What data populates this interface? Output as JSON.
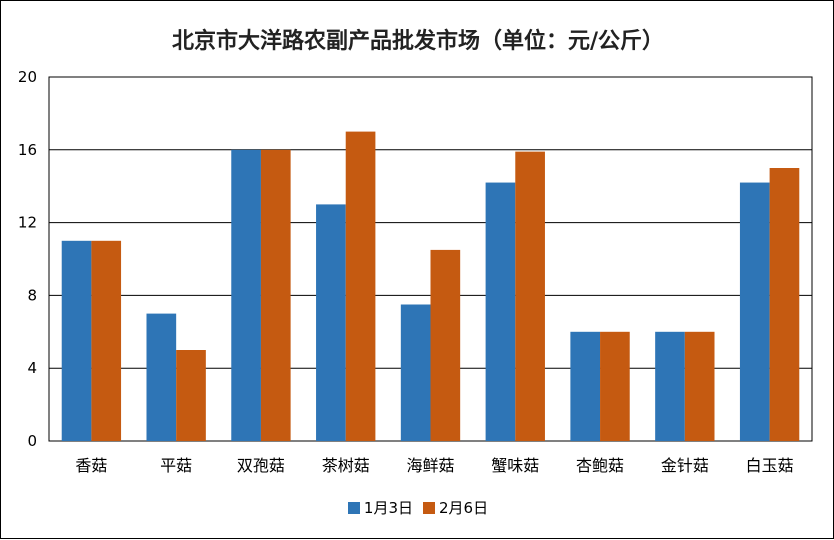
{
  "chart_data": {
    "type": "bar",
    "title": "北京市大洋路农副产品批发市场（单位：元/公斤）",
    "xlabel": "",
    "ylabel": "",
    "ylim": [
      0,
      20
    ],
    "yticks": [
      0,
      4,
      8,
      12,
      16,
      20
    ],
    "grid": true,
    "legend_position": "bottom",
    "categories": [
      "香菇",
      "平菇",
      "双孢菇",
      "茶树菇",
      "海鲜菇",
      "蟹味菇",
      "杏鲍菇",
      "金针菇",
      "白玉菇"
    ],
    "series": [
      {
        "name": "1月3日",
        "color": "#2e75b6",
        "values": [
          11,
          7,
          16,
          13,
          7.5,
          14.2,
          6,
          6,
          14.2
        ]
      },
      {
        "name": "2月6日",
        "color": "#c55a11",
        "values": [
          11,
          5,
          16,
          17,
          10.5,
          15.9,
          6,
          6,
          15
        ]
      }
    ]
  }
}
